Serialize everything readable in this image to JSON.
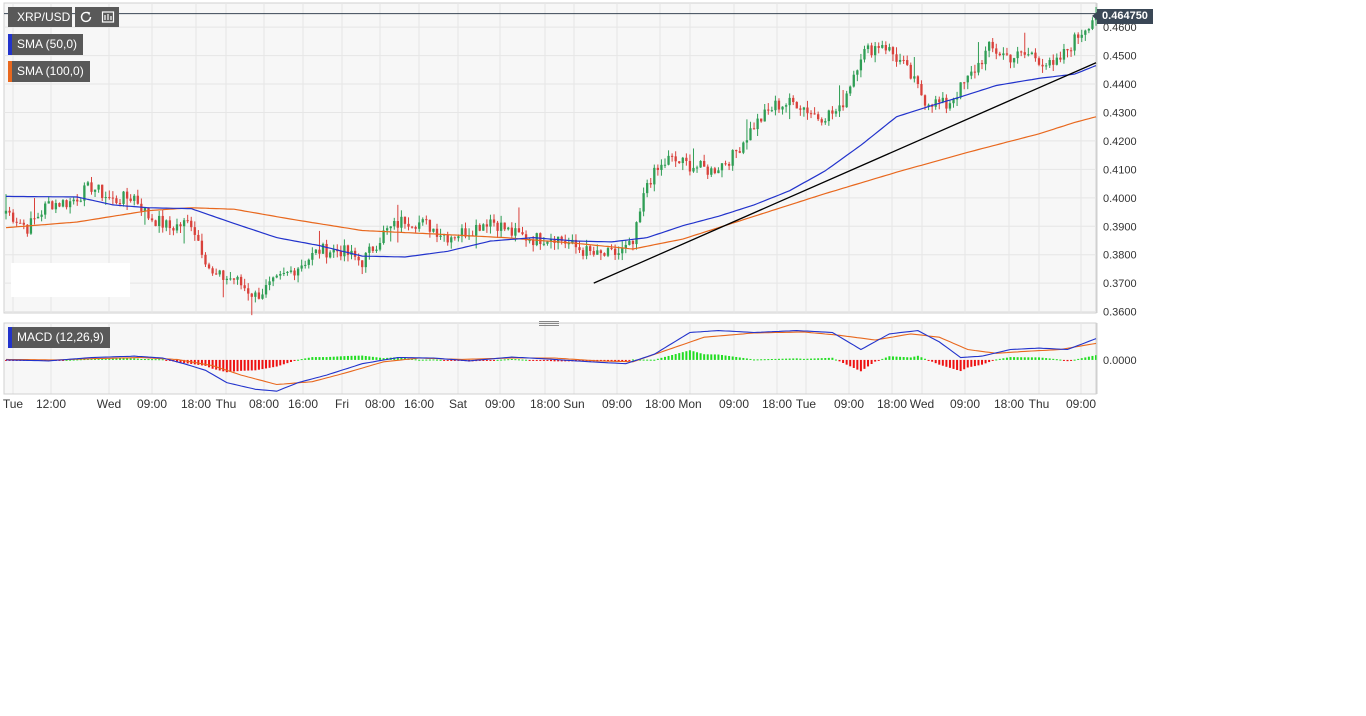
{
  "toolbar": {
    "symbol": "XRP/USD",
    "refresh_icon": "refresh-icon",
    "settings_icon": "chart-settings-icon"
  },
  "indicators": {
    "sma50": {
      "label": "SMA (50,0)",
      "color": "#2233cc"
    },
    "sma100": {
      "label": "SMA (100,0)",
      "color": "#e8681e"
    },
    "macd": {
      "label": "MACD (12,26,9)"
    }
  },
  "last_price": "0.464750",
  "colors": {
    "up": "#2f9e55",
    "down": "#d9413b",
    "hist_up": "#22dd22",
    "hist_down": "#ee1111",
    "macd_line": "#2233cc",
    "signal_line": "#e8681e",
    "trendline": "#000000",
    "plot_bg": "#f7f7f7",
    "grid": "#e6e6e6"
  },
  "chart_data": [
    {
      "type": "candlestick",
      "title": "XRP/USD",
      "x_ticks": [
        "Tue",
        "12:00",
        "Wed",
        "09:00",
        "18:00",
        "Thu",
        "08:00",
        "16:00",
        "Fri",
        "08:00",
        "16:00",
        "Sat",
        "09:00",
        "18:00",
        "Sun",
        "09:00",
        "18:00",
        "Mon",
        "09:00",
        "18:00",
        "Tue",
        "09:00",
        "18:00",
        "Wed",
        "09:00",
        "18:00",
        "Thu",
        "09:00"
      ],
      "y_ticks": [
        "0.4600",
        "0.4500",
        "0.4400",
        "0.4300",
        "0.4200",
        "0.4100",
        "0.4000",
        "0.3900",
        "0.3800",
        "0.3700",
        "0.3600"
      ],
      "ylim": [
        0.3595,
        0.4685
      ],
      "grid": true,
      "last_price": 0.46475,
      "close_anchors": [
        [
          0,
          0.3955
        ],
        [
          6,
          0.3895
        ],
        [
          12,
          0.398
        ],
        [
          18,
          0.3985
        ],
        [
          24,
          0.404
        ],
        [
          30,
          0.399
        ],
        [
          36,
          0.4005
        ],
        [
          40,
          0.3935
        ],
        [
          46,
          0.3895
        ],
        [
          52,
          0.3915
        ],
        [
          58,
          0.3725
        ],
        [
          64,
          0.3715
        ],
        [
          70,
          0.3655
        ],
        [
          76,
          0.3705
        ],
        [
          82,
          0.376
        ],
        [
          88,
          0.3815
        ],
        [
          94,
          0.3815
        ],
        [
          100,
          0.3775
        ],
        [
          106,
          0.3875
        ],
        [
          112,
          0.3925
        ],
        [
          118,
          0.3905
        ],
        [
          124,
          0.3865
        ],
        [
          130,
          0.3885
        ],
        [
          136,
          0.3925
        ],
        [
          142,
          0.3875
        ],
        [
          148,
          0.3855
        ],
        [
          154,
          0.3865
        ],
        [
          160,
          0.3825
        ],
        [
          166,
          0.3795
        ],
        [
          172,
          0.3805
        ],
        [
          176,
          0.3835
        ],
        [
          180,
          0.4055
        ],
        [
          186,
          0.4135
        ],
        [
          192,
          0.4115
        ],
        [
          198,
          0.4095
        ],
        [
          204,
          0.4145
        ],
        [
          210,
          0.4255
        ],
        [
          216,
          0.4325
        ],
        [
          222,
          0.4335
        ],
        [
          228,
          0.4285
        ],
        [
          234,
          0.4305
        ],
        [
          240,
          0.4505
        ],
        [
          246,
          0.4545
        ],
        [
          252,
          0.4465
        ],
        [
          258,
          0.4345
        ],
        [
          264,
          0.4325
        ],
        [
          270,
          0.4415
        ],
        [
          276,
          0.4525
        ],
        [
          282,
          0.4495
        ],
        [
          288,
          0.4505
        ],
        [
          294,
          0.4455
        ],
        [
          300,
          0.4555
        ],
        [
          306,
          0.4647
        ]
      ],
      "sma50_anchors": [
        [
          0,
          0.4005
        ],
        [
          20,
          0.4003
        ],
        [
          30,
          0.3975
        ],
        [
          40,
          0.3965
        ],
        [
          52,
          0.3962
        ],
        [
          64,
          0.391
        ],
        [
          76,
          0.386
        ],
        [
          88,
          0.3832
        ],
        [
          100,
          0.3795
        ],
        [
          112,
          0.3792
        ],
        [
          124,
          0.3812
        ],
        [
          136,
          0.3848
        ],
        [
          148,
          0.386
        ],
        [
          160,
          0.3848
        ],
        [
          170,
          0.3845
        ],
        [
          180,
          0.386
        ],
        [
          190,
          0.3902
        ],
        [
          200,
          0.3935
        ],
        [
          210,
          0.3975
        ],
        [
          220,
          0.4025
        ],
        [
          230,
          0.4095
        ],
        [
          240,
          0.4185
        ],
        [
          250,
          0.4285
        ],
        [
          260,
          0.4325
        ],
        [
          268,
          0.4355
        ],
        [
          278,
          0.4395
        ],
        [
          290,
          0.442
        ],
        [
          300,
          0.4435
        ],
        [
          306,
          0.4465
        ]
      ],
      "sma100_anchors": [
        [
          0,
          0.3895
        ],
        [
          20,
          0.3915
        ],
        [
          40,
          0.3955
        ],
        [
          52,
          0.3965
        ],
        [
          64,
          0.396
        ],
        [
          80,
          0.3925
        ],
        [
          100,
          0.3885
        ],
        [
          120,
          0.3873
        ],
        [
          140,
          0.386
        ],
        [
          160,
          0.384
        ],
        [
          176,
          0.382
        ],
        [
          190,
          0.3855
        ],
        [
          210,
          0.3935
        ],
        [
          230,
          0.4015
        ],
        [
          250,
          0.409
        ],
        [
          270,
          0.416
        ],
        [
          290,
          0.4225
        ],
        [
          300,
          0.4265
        ],
        [
          306,
          0.4285
        ]
      ],
      "trendline": {
        "from": [
          165,
          0.37
        ],
        "to": [
          306,
          0.4475
        ]
      }
    },
    {
      "type": "macd",
      "title": "MACD (12,26,9)",
      "y_ticks": [
        "0.0000"
      ],
      "ylim": [
        -0.0072,
        0.0078
      ],
      "macd_anchors": [
        [
          0,
          0.0
        ],
        [
          12,
          -0.0002
        ],
        [
          24,
          0.0005
        ],
        [
          36,
          0.0008
        ],
        [
          44,
          0.0004
        ],
        [
          50,
          -0.0008
        ],
        [
          56,
          -0.0022
        ],
        [
          62,
          -0.0048
        ],
        [
          70,
          -0.0062
        ],
        [
          76,
          -0.0066
        ],
        [
          82,
          -0.0048
        ],
        [
          90,
          -0.0032
        ],
        [
          100,
          -0.0008
        ],
        [
          110,
          0.0005
        ],
        [
          120,
          0.0004
        ],
        [
          130,
          -0.0002
        ],
        [
          142,
          0.0006
        ],
        [
          152,
          0.0002
        ],
        [
          164,
          -0.0004
        ],
        [
          174,
          -0.0008
        ],
        [
          182,
          0.0012
        ],
        [
          192,
          0.0058
        ],
        [
          200,
          0.0062
        ],
        [
          210,
          0.0058
        ],
        [
          222,
          0.0062
        ],
        [
          232,
          0.0058
        ],
        [
          240,
          0.0022
        ],
        [
          248,
          0.0055
        ],
        [
          256,
          0.0062
        ],
        [
          262,
          0.0038
        ],
        [
          268,
          0.0005
        ],
        [
          274,
          0.0008
        ],
        [
          282,
          0.0022
        ],
        [
          290,
          0.0025
        ],
        [
          298,
          0.0022
        ],
        [
          306,
          0.0045
        ]
      ],
      "signal_anchors": [
        [
          0,
          0.0001
        ],
        [
          14,
          0.0
        ],
        [
          26,
          0.0003
        ],
        [
          38,
          0.0005
        ],
        [
          48,
          0.0001
        ],
        [
          58,
          -0.0012
        ],
        [
          66,
          -0.0032
        ],
        [
          76,
          -0.0052
        ],
        [
          86,
          -0.0046
        ],
        [
          96,
          -0.0026
        ],
        [
          106,
          -0.0004
        ],
        [
          116,
          0.0004
        ],
        [
          128,
          0.0001
        ],
        [
          142,
          0.0004
        ],
        [
          154,
          0.0004
        ],
        [
          166,
          -0.0002
        ],
        [
          176,
          -0.0004
        ],
        [
          186,
          0.0022
        ],
        [
          196,
          0.0048
        ],
        [
          210,
          0.0057
        ],
        [
          224,
          0.0059
        ],
        [
          234,
          0.0052
        ],
        [
          244,
          0.0042
        ],
        [
          254,
          0.0055
        ],
        [
          262,
          0.0048
        ],
        [
          270,
          0.0022
        ],
        [
          278,
          0.0014
        ],
        [
          286,
          0.0018
        ],
        [
          296,
          0.0022
        ],
        [
          306,
          0.0035
        ]
      ]
    }
  ]
}
